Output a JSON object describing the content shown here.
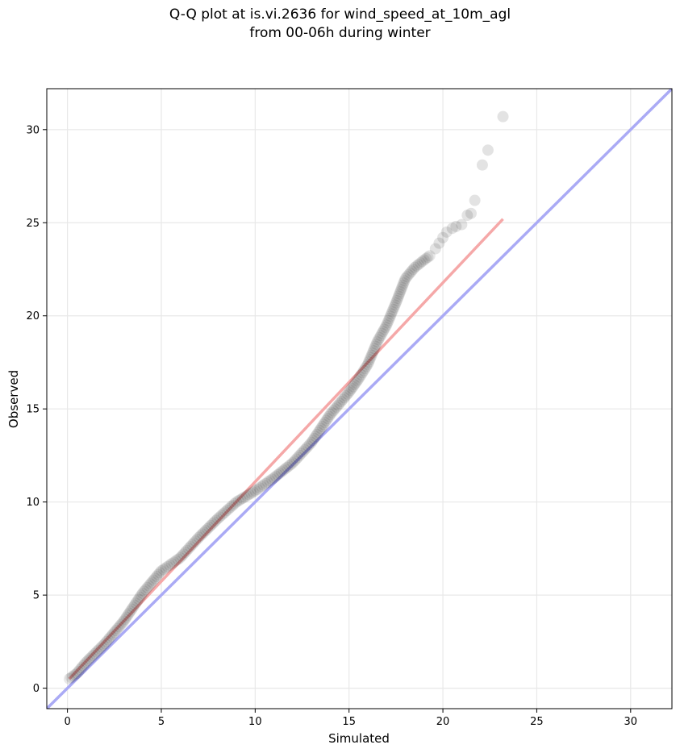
{
  "title_line1": "Q-Q plot at is.vi.2636 for wind_speed_at_10m_agl",
  "title_line2": "from 00-06h during winter",
  "colors": {
    "identity_line": "#aaaaf5",
    "fit_line": "#f5a8a8",
    "points": "#000000",
    "grid": "#e8e8e8"
  },
  "chart_data": {
    "type": "scatter",
    "title": "Q-Q plot at is.vi.2636 for wind_speed_at_10m_agl\nfrom 00-06h during winter",
    "xlabel": "Simulated",
    "ylabel": "Observed",
    "xlim": [
      -1.1,
      32.2
    ],
    "ylim": [
      -1.1,
      32.2
    ],
    "xticks": [
      0,
      5,
      10,
      15,
      20,
      25,
      30
    ],
    "yticks": [
      0,
      5,
      10,
      15,
      20,
      25,
      30
    ],
    "grid": true,
    "identity_line": {
      "x": [
        -1.1,
        32.2
      ],
      "y": [
        -1.1,
        32.2
      ]
    },
    "fit_line": {
      "x": [
        0.1,
        23.2
      ],
      "y": [
        0.5,
        25.2
      ]
    },
    "quantile_curve": {
      "x": [
        0.1,
        0.5,
        1.0,
        2.0,
        3.0,
        4.0,
        5.0,
        6.0,
        7.0,
        8.0,
        9.0,
        10.0,
        11.0,
        12.0,
        13.0,
        14.0,
        15.0,
        15.5,
        16.0,
        16.5,
        17.0,
        17.5,
        18.0,
        18.5,
        19.0,
        19.4
      ],
      "y": [
        0.5,
        0.8,
        1.4,
        2.4,
        3.6,
        5.1,
        6.3,
        7.0,
        8.1,
        9.1,
        10.0,
        10.6,
        11.3,
        12.1,
        13.2,
        14.7,
        15.9,
        16.6,
        17.4,
        18.6,
        19.5,
        20.7,
        22.0,
        22.6,
        23.0,
        23.3
      ]
    },
    "tail_points": {
      "x": [
        19.6,
        19.8,
        20.0,
        20.2,
        20.5,
        20.7,
        21.0,
        21.3,
        21.5,
        21.7,
        22.1,
        22.4,
        23.2
      ],
      "y": [
        23.6,
        23.9,
        24.2,
        24.5,
        24.7,
        24.8,
        24.9,
        25.4,
        25.5,
        26.2,
        28.1,
        28.9,
        30.7
      ]
    }
  }
}
